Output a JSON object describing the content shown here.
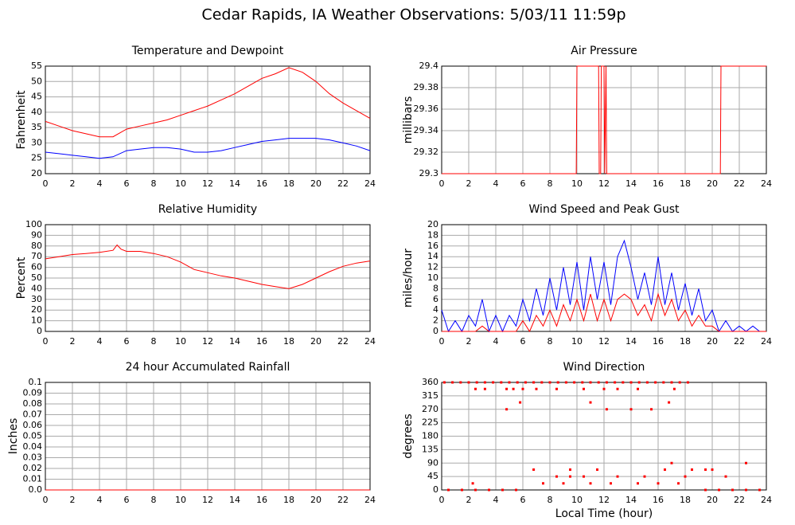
{
  "title": "Cedar Rapids, IA Weather Observations: 5/03/11 11:59p",
  "chart_data": [
    {
      "type": "line",
      "title": "Temperature and Dewpoint",
      "ylabel": "Fahrenheit",
      "x": [
        0,
        1,
        2,
        3,
        4,
        5,
        6,
        7,
        8,
        9,
        10,
        11,
        12,
        13,
        14,
        15,
        16,
        17,
        18,
        19,
        20,
        21,
        22,
        23,
        24
      ],
      "series": [
        {
          "name": "Temperature",
          "color": "#ff0000",
          "values": [
            37,
            35.5,
            34,
            33,
            32,
            32,
            34.5,
            35.5,
            36.5,
            37.5,
            39,
            40.5,
            42,
            44,
            46,
            48.5,
            51,
            52.5,
            54.5,
            53,
            50,
            46,
            43,
            40.5,
            38
          ]
        },
        {
          "name": "Dewpoint",
          "color": "#0000ff",
          "values": [
            27,
            26.5,
            26,
            25.5,
            25,
            25.5,
            27.5,
            28,
            28.5,
            28.5,
            28,
            27,
            27,
            27.5,
            28.5,
            29.5,
            30.5,
            31,
            31.5,
            31.5,
            31.5,
            31,
            30,
            29,
            27.5
          ]
        }
      ],
      "xlim": [
        0,
        24
      ],
      "xticks": [
        0,
        2,
        4,
        6,
        8,
        10,
        12,
        14,
        16,
        18,
        20,
        22,
        24
      ],
      "ylim": [
        20,
        55
      ],
      "yticks": [
        20,
        25,
        30,
        35,
        40,
        45,
        50,
        55
      ],
      "grid": true
    },
    {
      "type": "line",
      "title": "Air Pressure",
      "ylabel": "millibars",
      "x": [
        0,
        9.95,
        10,
        11.6,
        11.65,
        11.75,
        11.8,
        12.0,
        12.05,
        12.15,
        12.2,
        20.6,
        20.65,
        24
      ],
      "series": [
        {
          "name": "Pressure",
          "color": "#ff0000",
          "values": [
            29.3,
            29.3,
            29.4,
            29.4,
            29.3,
            29.3,
            29.4,
            29.4,
            29.3,
            29.4,
            29.3,
            29.3,
            29.4,
            29.4
          ]
        }
      ],
      "xlim": [
        0,
        24
      ],
      "xticks": [
        0,
        2,
        4,
        6,
        8,
        10,
        12,
        14,
        16,
        18,
        20,
        22,
        24
      ],
      "ylim": [
        29.3,
        29.4
      ],
      "yticks": [
        29.3,
        29.32,
        29.34,
        29.36,
        29.38,
        29.4
      ],
      "grid": true
    },
    {
      "type": "line",
      "title": "Relative Humidity",
      "ylabel": "Percent",
      "x": [
        0,
        1,
        2,
        3,
        4,
        5,
        5.3,
        5.6,
        6,
        7,
        8,
        9,
        10,
        11,
        12,
        13,
        14,
        15,
        16,
        17,
        18,
        19,
        20,
        21,
        22,
        23,
        24
      ],
      "series": [
        {
          "name": "Humidity",
          "color": "#ff0000",
          "values": [
            68,
            70,
            72,
            73,
            74,
            76,
            81,
            77,
            75,
            75,
            73,
            70,
            65,
            58,
            55,
            52,
            50,
            47,
            44,
            42,
            40,
            44,
            50,
            56,
            61,
            64,
            66
          ]
        }
      ],
      "xlim": [
        0,
        24
      ],
      "xticks": [
        0,
        2,
        4,
        6,
        8,
        10,
        12,
        14,
        16,
        18,
        20,
        22,
        24
      ],
      "ylim": [
        0,
        100
      ],
      "yticks": [
        0,
        10,
        20,
        30,
        40,
        50,
        60,
        70,
        80,
        90,
        100
      ],
      "grid": true
    },
    {
      "type": "line",
      "title": "Wind Speed and Peak Gust",
      "ylabel": "miles/hour",
      "x": [
        0,
        0.5,
        1,
        1.5,
        2,
        2.5,
        3,
        3.5,
        4,
        4.5,
        5,
        5.5,
        6,
        6.5,
        7,
        7.5,
        8,
        8.5,
        9,
        9.5,
        10,
        10.5,
        11,
        11.5,
        12,
        12.5,
        13,
        13.5,
        14,
        14.5,
        15,
        15.5,
        16,
        16.5,
        17,
        17.5,
        18,
        18.5,
        19,
        19.5,
        20,
        20.5,
        21,
        21.5,
        22,
        22.5,
        23,
        23.5,
        24
      ],
      "series": [
        {
          "name": "Peak Gust",
          "color": "#0000ff",
          "values": [
            4,
            0,
            2,
            0,
            3,
            1,
            6,
            0,
            3,
            0,
            3,
            1,
            6,
            2,
            8,
            3,
            10,
            4,
            12,
            5,
            13,
            4,
            14,
            6,
            13,
            5,
            14,
            17,
            12,
            6,
            11,
            5,
            14,
            5,
            11,
            4,
            9,
            3,
            8,
            2,
            4,
            0,
            2,
            0,
            1,
            0,
            1,
            0,
            0
          ]
        },
        {
          "name": "Wind Speed",
          "color": "#ff0000",
          "values": [
            0,
            0,
            0,
            0,
            0,
            0,
            1,
            0,
            0,
            0,
            0,
            0,
            2,
            0,
            3,
            1,
            4,
            1,
            5,
            2,
            6,
            2,
            7,
            2,
            6,
            2,
            6,
            7,
            6,
            3,
            5,
            2,
            7,
            3,
            6,
            2,
            4,
            1,
            3,
            1,
            1,
            0,
            0,
            0,
            0,
            0,
            0,
            0,
            0
          ]
        }
      ],
      "xlim": [
        0,
        24
      ],
      "xticks": [
        0,
        2,
        4,
        6,
        8,
        10,
        12,
        14,
        16,
        18,
        20,
        22,
        24
      ],
      "ylim": [
        0,
        20
      ],
      "yticks": [
        0,
        2,
        4,
        6,
        8,
        10,
        12,
        14,
        16,
        18,
        20
      ],
      "grid": true
    },
    {
      "type": "line",
      "title": "24 hour Accumulated Rainfall",
      "ylabel": "Inches",
      "x": [
        0,
        24
      ],
      "series": [
        {
          "name": "Rainfall",
          "color": "#ff0000",
          "values": [
            0,
            0
          ]
        }
      ],
      "xlim": [
        0,
        24
      ],
      "xticks": [
        0,
        2,
        4,
        6,
        8,
        10,
        12,
        14,
        16,
        18,
        20,
        22,
        24
      ],
      "ylim": [
        0,
        0.1
      ],
      "yticks": [
        {
          "value": 0,
          "label": "0.0"
        },
        0.01,
        0.02,
        0.03,
        0.04,
        0.05,
        0.06,
        0.07,
        0.08,
        0.09,
        0.1
      ],
      "grid": true
    },
    {
      "type": "scatter",
      "title": "Wind Direction",
      "ylabel": "degrees",
      "xlabel": "Local Time (hour)",
      "x": [
        0.2,
        0.8,
        1.4,
        2.0,
        2.6,
        3.2,
        3.8,
        4.4,
        5.0,
        5.6,
        6.2,
        6.8,
        7.4,
        8.0,
        8.6,
        9.2,
        9.8,
        10.4,
        11.0,
        11.6,
        12.2,
        12.8,
        13.4,
        14.0,
        14.6,
        15.2,
        15.8,
        16.4,
        17.0,
        17.6,
        18.2,
        0.5,
        1.5,
        2.5,
        3.5,
        4.5,
        5.5,
        19.5,
        20.5,
        21.5,
        22.5,
        23.5,
        2.5,
        3.2,
        4.8,
        5.3,
        6.0,
        7.0,
        8.5,
        10.5,
        12.0,
        13.0,
        14.5,
        17.2,
        2.3,
        7.5,
        9.0,
        11.0,
        12.5,
        14.5,
        16.0,
        17.5,
        8.5,
        9.5,
        10.5,
        13.0,
        15.0,
        18.0,
        21.0,
        6.8,
        9.5,
        11.5,
        16.5,
        18.5,
        19.5,
        20.0,
        17.0,
        22.5,
        4.8,
        12.2,
        14.0,
        15.5,
        5.8,
        11.0,
        16.8
      ],
      "series": [
        {
          "name": "Direction",
          "color": "#ff0000",
          "values": [
            360,
            360,
            360,
            360,
            360,
            360,
            360,
            360,
            360,
            360,
            360,
            360,
            360,
            360,
            360,
            360,
            360,
            360,
            360,
            360,
            360,
            360,
            360,
            360,
            360,
            360,
            360,
            360,
            360,
            360,
            360,
            0,
            0,
            0,
            0,
            0,
            0,
            0,
            0,
            0,
            0,
            0,
            338,
            338,
            338,
            338,
            338,
            338,
            338,
            338,
            338,
            338,
            338,
            338,
            22,
            22,
            22,
            22,
            22,
            22,
            22,
            22,
            45,
            45,
            45,
            45,
            45,
            45,
            45,
            68,
            68,
            68,
            68,
            68,
            68,
            68,
            90,
            90,
            270,
            270,
            270,
            270,
            293,
            293,
            293
          ]
        }
      ],
      "xlim": [
        0,
        24
      ],
      "xticks": [
        0,
        2,
        4,
        6,
        8,
        10,
        12,
        14,
        16,
        18,
        20,
        22,
        24
      ],
      "ylim": [
        0,
        360
      ],
      "yticks": [
        0,
        45,
        90,
        135,
        180,
        225,
        270,
        315,
        360
      ],
      "grid": true
    }
  ]
}
